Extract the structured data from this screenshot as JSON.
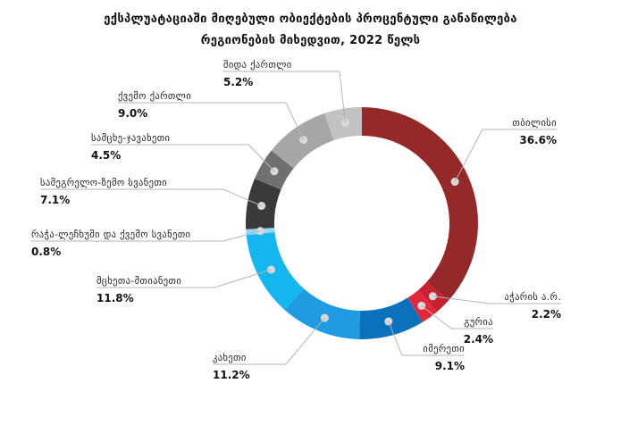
{
  "title_line1": "ექსპლუატაციაში მიღებული ობიექტების პროცენტული განაწილება",
  "title_line2": "რეგიონების მიხედვით, 2022 წელს",
  "chart_data": {
    "type": "pie",
    "donut": true,
    "title": "ექსპლუატაციაში მიღებული ობიექტების პროცენტული განაწილება რეგიონების მიხედვით, 2022 წელს",
    "unit": "%",
    "slices": [
      {
        "name": "თბილისი",
        "label": "36.6%",
        "value": 36.6,
        "color": "#952828"
      },
      {
        "name": "აჭარის ა.რ.",
        "label": "2.2%",
        "value": 2.2,
        "color": "#c8202e"
      },
      {
        "name": "გურია",
        "label": "2.4%",
        "value": 2.4,
        "color": "#e4283b"
      },
      {
        "name": "იმერეთი",
        "label": "9.1%",
        "value": 9.1,
        "color": "#0a72bc"
      },
      {
        "name": "კახეთი",
        "label": "11.2%",
        "value": 11.2,
        "color": "#1f9be3"
      },
      {
        "name": "მცხეთა-მთიანეთი",
        "label": "11.8%",
        "value": 11.8,
        "color": "#14b6f0"
      },
      {
        "name": "რაჭა-ლეჩხუმი და ქვემო სვანეთი",
        "label": "0.8%",
        "value": 0.8,
        "color": "#8fd8f7"
      },
      {
        "name": "სამეგრელო-ზემო სვანეთი",
        "label": "7.1%",
        "value": 7.1,
        "color": "#3a3a3a"
      },
      {
        "name": "სამცხე-ჯავახეთი",
        "label": "4.5%",
        "value": 4.5,
        "color": "#707070"
      },
      {
        "name": "ქვემო ქართლი",
        "label": "9.0%",
        "value": 9.0,
        "color": "#a6a6a6"
      },
      {
        "name": "შიდა ქართლი",
        "label": "5.2%",
        "value": 5.2,
        "color": "#c2c2c2"
      }
    ]
  }
}
